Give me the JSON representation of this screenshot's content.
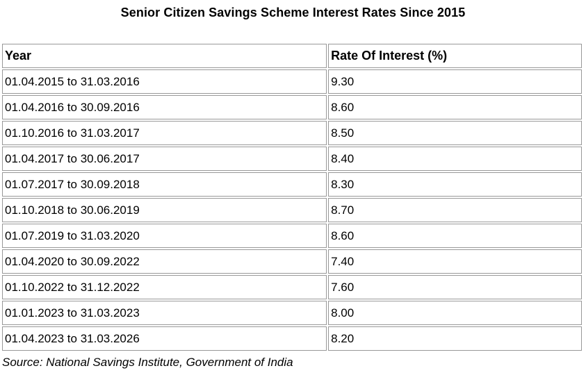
{
  "title": "Senior Citizen Savings Scheme Interest Rates Since 2015",
  "table": {
    "headers": {
      "year": "Year",
      "rate": "Rate Of Interest (%)"
    },
    "rows": [
      {
        "year": "01.04.2015 to 31.03.2016",
        "rate": "9.30"
      },
      {
        "year": "01.04.2016 to 30.09.2016",
        "rate": "8.60"
      },
      {
        "year": "01.10.2016 to 31.03.2017",
        "rate": "8.50"
      },
      {
        "year": "01.04.2017 to 30.06.2017",
        "rate": "8.40"
      },
      {
        "year": "01.07.2017 to 30.09.2018",
        "rate": "8.30"
      },
      {
        "year": "01.10.2018 to 30.06.2019",
        "rate": "8.70"
      },
      {
        "year": "01.07.2019 to 31.03.2020",
        "rate": "8.60"
      },
      {
        "year": "01.04.2020 to 30.09.2022",
        "rate": "7.40"
      },
      {
        "year": "01.10.2022 to 31.12.2022",
        "rate": "7.60"
      },
      {
        "year": "01.01.2023 to 31.03.2023",
        "rate": "8.00"
      },
      {
        "year": "01.04.2023 to 31.03.2026",
        "rate": "8.20"
      }
    ]
  },
  "source": "Source: National Savings Institute, Government of India",
  "colors": {
    "background": "#ffffff",
    "text": "#000000",
    "cell_border": "#989898"
  },
  "chart_data": {
    "type": "table",
    "title": "Senior Citizen Savings Scheme Interest Rates Since 2015",
    "columns": [
      "Year",
      "Rate Of Interest (%)"
    ],
    "rows": [
      [
        "01.04.2015 to 31.03.2016",
        9.3
      ],
      [
        "01.04.2016 to 30.09.2016",
        8.6
      ],
      [
        "01.10.2016 to 31.03.2017",
        8.5
      ],
      [
        "01.04.2017 to 30.06.2017",
        8.4
      ],
      [
        "01.07.2017 to 30.09.2018",
        8.3
      ],
      [
        "01.10.2018 to 30.06.2019",
        8.7
      ],
      [
        "01.07.2019 to 31.03.2020",
        8.6
      ],
      [
        "01.04.2020 to 30.09.2022",
        7.4
      ],
      [
        "01.10.2022 to 31.12.2022",
        7.6
      ],
      [
        "01.01.2023 to 31.03.2023",
        8.0
      ],
      [
        "01.04.2023 to 31.03.2026",
        8.2
      ]
    ],
    "source": "Source: National Savings Institute, Government of India",
    "layout_hints": {
      "header_bold": true,
      "grid": "on",
      "cell_spacing_px": 2,
      "column_split_ratio": [
        0.56,
        0.44
      ]
    }
  }
}
